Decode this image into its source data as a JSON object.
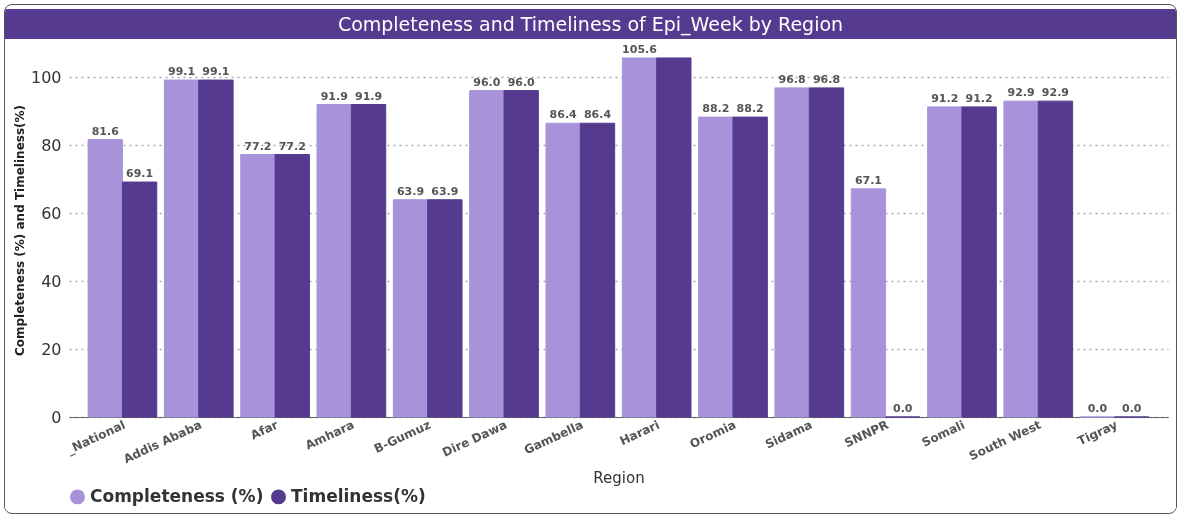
{
  "chart_data": {
    "type": "bar",
    "title": "Completeness and Timeliness of Epi_Week by Region",
    "xlabel": "Region",
    "ylabel": "Completeness (%) and Timeliness(%)",
    "categories": [
      "_National",
      "Addis Ababa",
      "Afar",
      "Amhara",
      "B-Gumuz",
      "Dire Dawa",
      "Gambella",
      "Harari",
      "Oromia",
      "Sidama",
      "SNNPR",
      "Somali",
      "South West",
      "Tigray"
    ],
    "series": [
      {
        "name": "Completeness (%)",
        "color": "#a893db",
        "values": [
          81.6,
          99.1,
          77.2,
          91.9,
          63.9,
          96.0,
          86.4,
          105.6,
          88.2,
          96.8,
          67.1,
          91.2,
          92.9,
          0.0
        ],
        "value_labels": [
          "81.6",
          "99.1",
          "77.2",
          "91.9",
          "63.9",
          "96.0",
          "86.4",
          "105.6",
          "88.2",
          "96.8",
          "67.1",
          "91.2",
          "92.9",
          "0.0"
        ]
      },
      {
        "name": "Timeliness(%)",
        "color": "#563a8f",
        "values": [
          69.1,
          99.1,
          77.2,
          91.9,
          63.9,
          96.0,
          86.4,
          105.6,
          88.2,
          96.8,
          0.0,
          91.2,
          92.9,
          0.0
        ],
        "value_labels": [
          "69.1",
          "99.1",
          "77.2",
          "91.9",
          "63.9",
          "96.0",
          "86.4",
          null,
          "88.2",
          "96.8",
          "0.0",
          "91.2",
          "92.9",
          "0.0"
        ]
      }
    ],
    "ylim": [
      0,
      110
    ],
    "yticks": [
      0,
      20,
      40,
      60,
      80,
      100
    ],
    "grid": "y",
    "legend": "bottom"
  }
}
